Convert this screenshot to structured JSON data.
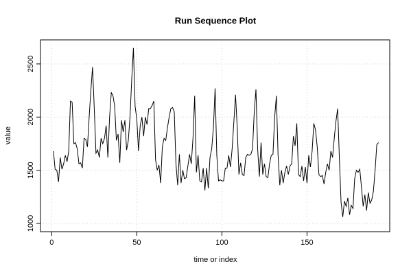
{
  "chart_data": {
    "type": "line",
    "title": "Run Sequence Plot",
    "x_label": "time or index",
    "y_label": "value",
    "x": [
      1,
      2,
      3,
      4,
      5,
      6,
      7,
      8,
      9,
      10,
      11,
      12,
      13,
      14,
      15,
      16,
      17,
      18,
      19,
      20,
      21,
      22,
      23,
      24,
      25,
      26,
      27,
      28,
      29,
      30,
      31,
      32,
      33,
      34,
      35,
      36,
      37,
      38,
      39,
      40,
      41,
      42,
      43,
      44,
      45,
      46,
      47,
      48,
      49,
      50,
      51,
      52,
      53,
      54,
      55,
      56,
      57,
      58,
      59,
      60,
      61,
      62,
      63,
      64,
      65,
      66,
      67,
      68,
      69,
      70,
      71,
      72,
      73,
      74,
      75,
      76,
      77,
      78,
      79,
      80,
      81,
      82,
      83,
      84,
      85,
      86,
      87,
      88,
      89,
      90,
      91,
      92,
      93,
      94,
      95,
      96,
      97,
      98,
      99,
      100,
      101,
      102,
      103,
      104,
      105,
      106,
      107,
      108,
      109,
      110,
      111,
      112,
      113,
      114,
      115,
      116,
      117,
      118,
      119,
      120,
      121,
      122,
      123,
      124,
      125,
      126,
      127,
      128,
      129,
      130,
      131,
      132,
      133,
      134,
      135,
      136,
      137,
      138,
      139,
      140,
      141,
      142,
      143,
      144,
      145,
      146,
      147,
      148,
      149,
      150,
      151,
      152,
      153,
      154,
      155,
      156,
      157,
      158,
      159,
      160,
      161,
      162,
      163,
      164,
      165,
      166,
      167,
      168,
      169,
      170,
      171,
      172,
      173,
      174,
      175,
      176,
      177,
      178,
      179,
      180,
      181,
      182,
      183,
      184,
      185,
      186,
      187,
      188,
      189,
      190,
      191,
      192
    ],
    "series": [
      {
        "name": "value",
        "color": "#000000",
        "values": [
          1680,
          1510,
          1500,
          1390,
          1620,
          1510,
          1560,
          1640,
          1580,
          1680,
          2150,
          2140,
          1750,
          1760,
          1700,
          1560,
          1570,
          1520,
          1800,
          1790,
          1720,
          2000,
          2250,
          2470,
          2080,
          1660,
          1690,
          1620,
          1800,
          1750,
          1800,
          1920,
          1620,
          2000,
          2230,
          2200,
          2100,
          1780,
          1840,
          1570,
          1970,
          1860,
          1970,
          1690,
          1780,
          2000,
          2350,
          2650,
          2100,
          1980,
          1680,
          1920,
          2000,
          1820,
          2000,
          1930,
          2080,
          2080,
          2110,
          2150,
          1600,
          1500,
          1550,
          1380,
          1720,
          1800,
          1780,
          1900,
          2000,
          2080,
          2090,
          2050,
          1560,
          1360,
          1650,
          1380,
          1500,
          1420,
          1430,
          1540,
          1650,
          1560,
          1800,
          2200,
          1480,
          1640,
          1400,
          1390,
          1520,
          1310,
          1520,
          1330,
          1620,
          1700,
          1900,
          2270,
          1640,
          1400,
          1410,
          1400,
          1400,
          1520,
          1520,
          1640,
          1530,
          1700,
          1950,
          2210,
          1900,
          1460,
          1570,
          1460,
          1450,
          1620,
          1650,
          1640,
          1650,
          1700,
          2050,
          2260,
          1700,
          1440,
          1760,
          1460,
          1560,
          1440,
          1430,
          1560,
          1640,
          1650,
          2000,
          2200,
          1640,
          1360,
          1500,
          1380,
          1480,
          1540,
          1460,
          1540,
          1560,
          1820,
          1730,
          1940,
          1460,
          1440,
          1540,
          1400,
          1530,
          1380,
          1640,
          1530,
          1680,
          1940,
          1880,
          1720,
          1460,
          1440,
          1450,
          1370,
          1480,
          1560,
          1500,
          1680,
          1620,
          1800,
          1960,
          2080,
          1620,
          1200,
          1060,
          1210,
          1160,
          1240,
          1080,
          1170,
          1140,
          1420,
          1500,
          1480,
          1510,
          1340,
          1160,
          1270,
          1120,
          1290,
          1190,
          1220,
          1300,
          1500,
          1740,
          1760
        ]
      }
    ],
    "xlim": [
      -6.6,
      198.6
    ],
    "ylim": [
      922,
      2726
    ],
    "xticks": [
      0,
      50,
      100,
      150
    ],
    "yticks": [
      1000,
      1500,
      2000,
      2500
    ],
    "grid": true
  }
}
